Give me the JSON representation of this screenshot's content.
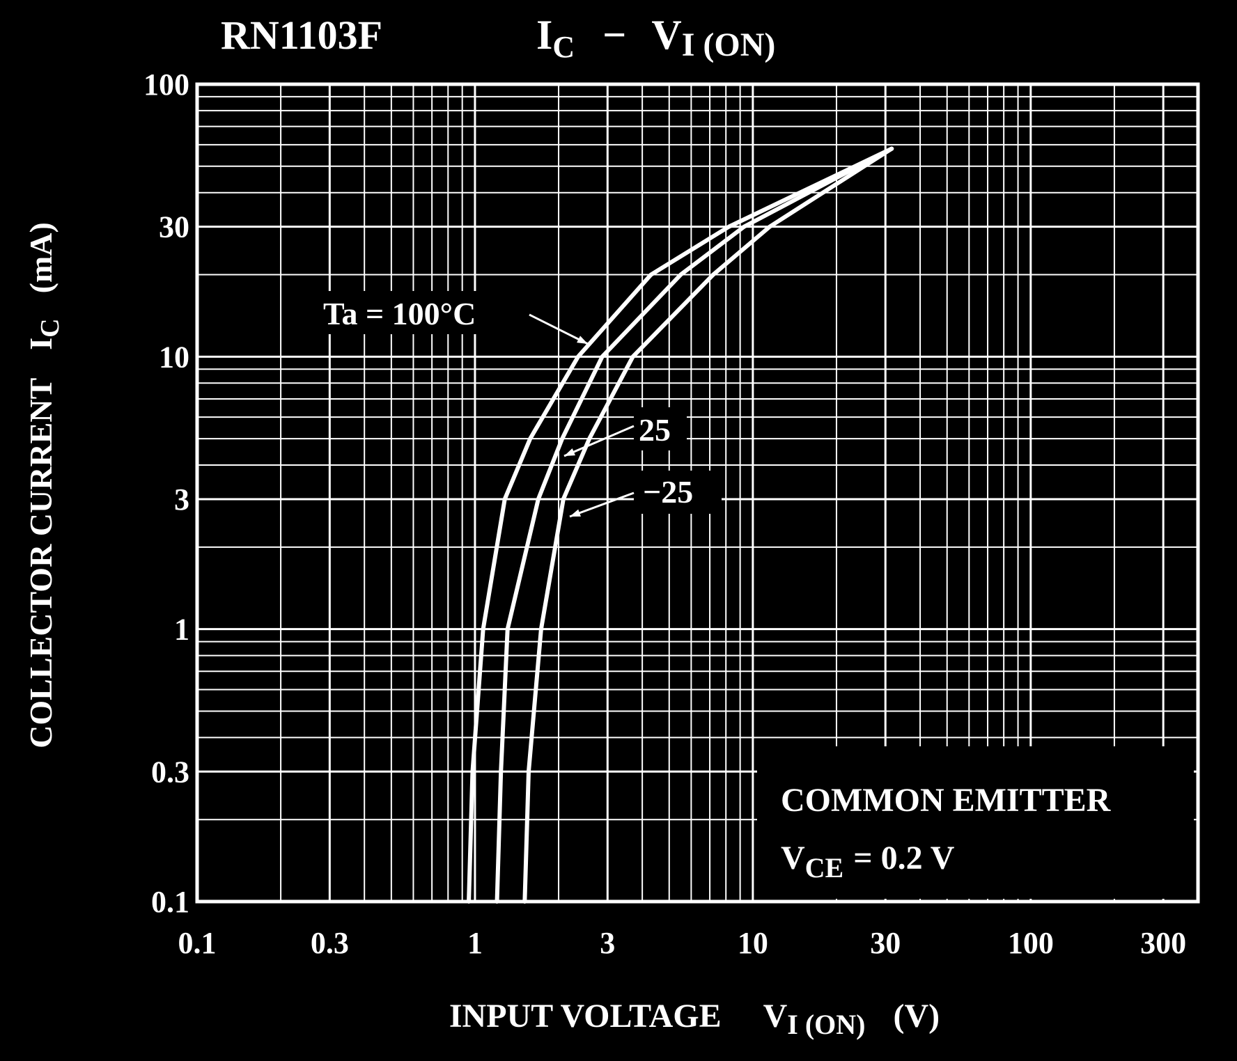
{
  "chart_data": {
    "type": "line",
    "title": "RN1103F",
    "subtitle": [
      "I",
      "C",
      "−",
      "V",
      "I (ON)"
    ],
    "x_label": [
      "INPUT VOLTAGE",
      "V",
      "I (ON)",
      "(V)"
    ],
    "y_label": [
      "COLLECTOR CURRENT",
      "I",
      "C",
      "(mA)"
    ],
    "annotation": [
      "COMMON EMITTER",
      "V",
      "CE",
      "= 0.2 V"
    ],
    "xscale": "log",
    "yscale": "log",
    "xlim": [
      0.1,
      400
    ],
    "ylim": [
      0.1,
      100
    ],
    "xticks": [
      0.1,
      0.3,
      1,
      3,
      10,
      30,
      100,
      300
    ],
    "yticks": [
      0.1,
      0.3,
      1,
      3,
      10,
      30,
      100
    ],
    "grid": true,
    "minor_grid": true,
    "background": "#000000",
    "foreground": "#ffffff",
    "series": [
      {
        "name": "Ta = 100°C",
        "color": "#ffffff",
        "x": [
          0.95,
          0.98,
          1.07,
          1.28,
          1.58,
          2.35,
          4.3,
          8.2,
          31.6
        ],
        "values": [
          0.1,
          0.3,
          1,
          3,
          5,
          10,
          20,
          30,
          58
        ]
      },
      {
        "name": "25",
        "color": "#ffffff",
        "x": [
          1.2,
          1.24,
          1.31,
          1.69,
          2.06,
          2.87,
          5.5,
          9.3,
          31.6
        ],
        "values": [
          0.1,
          0.3,
          1,
          3,
          5,
          10,
          20,
          30,
          58
        ]
      },
      {
        "name": "−25",
        "color": "#ffffff",
        "x": [
          1.51,
          1.56,
          1.73,
          2.08,
          2.58,
          3.7,
          7.2,
          11.5,
          31.6
        ],
        "values": [
          0.1,
          0.3,
          1,
          3,
          5,
          10,
          20,
          30,
          58
        ]
      }
    ]
  }
}
